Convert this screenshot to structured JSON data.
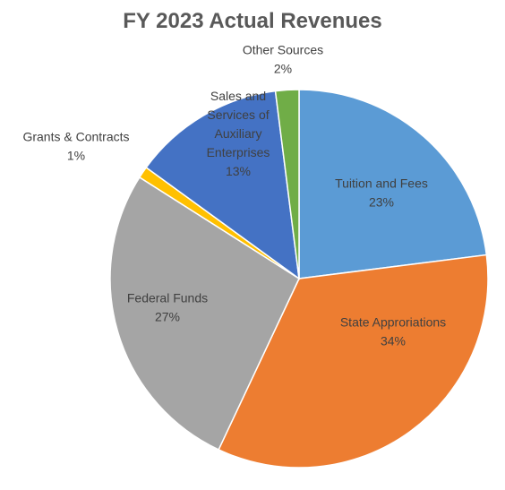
{
  "chart_data": {
    "type": "pie",
    "title": "FY 2023 Actual Revenues",
    "slices": [
      {
        "label": "Tuition and Fees",
        "value": 23,
        "display_value": "23%",
        "color": "#5B9BD5",
        "label_lines": [
          "Tuition and Fees",
          "23%"
        ],
        "label_placement": "inside"
      },
      {
        "label": "State Approriations",
        "value": 34,
        "display_value": "34%",
        "color": "#ED7D31",
        "label_lines": [
          "State Approriations",
          "34%"
        ],
        "label_placement": "inside"
      },
      {
        "label": "Federal Funds",
        "value": 27,
        "display_value": "27%",
        "color": "#A5A5A5",
        "label_lines": [
          "Federal Funds",
          "27%"
        ],
        "label_placement": "inside"
      },
      {
        "label": "Grants & Contracts",
        "value": 1,
        "display_value": "1%",
        "color": "#FFC000",
        "label_lines": [
          "Grants & Contracts",
          "1%"
        ],
        "label_placement": "outside"
      },
      {
        "label": "Sales and Services of Auxiliary Enterprises",
        "value": 13,
        "display_value": "13%",
        "color": "#4472C4",
        "label_lines": [
          "Sales and",
          "Services of",
          "Auxiliary",
          "Enterprises",
          "13%"
        ],
        "label_placement": "inside"
      },
      {
        "label": "Other Sources",
        "value": 2,
        "display_value": "2%",
        "color": "#70AD47",
        "label_lines": [
          "Other Sources",
          "2%"
        ],
        "label_placement": "outside"
      }
    ],
    "start_angle": "12 o'clock",
    "direction": "clockwise",
    "legend": "none"
  }
}
